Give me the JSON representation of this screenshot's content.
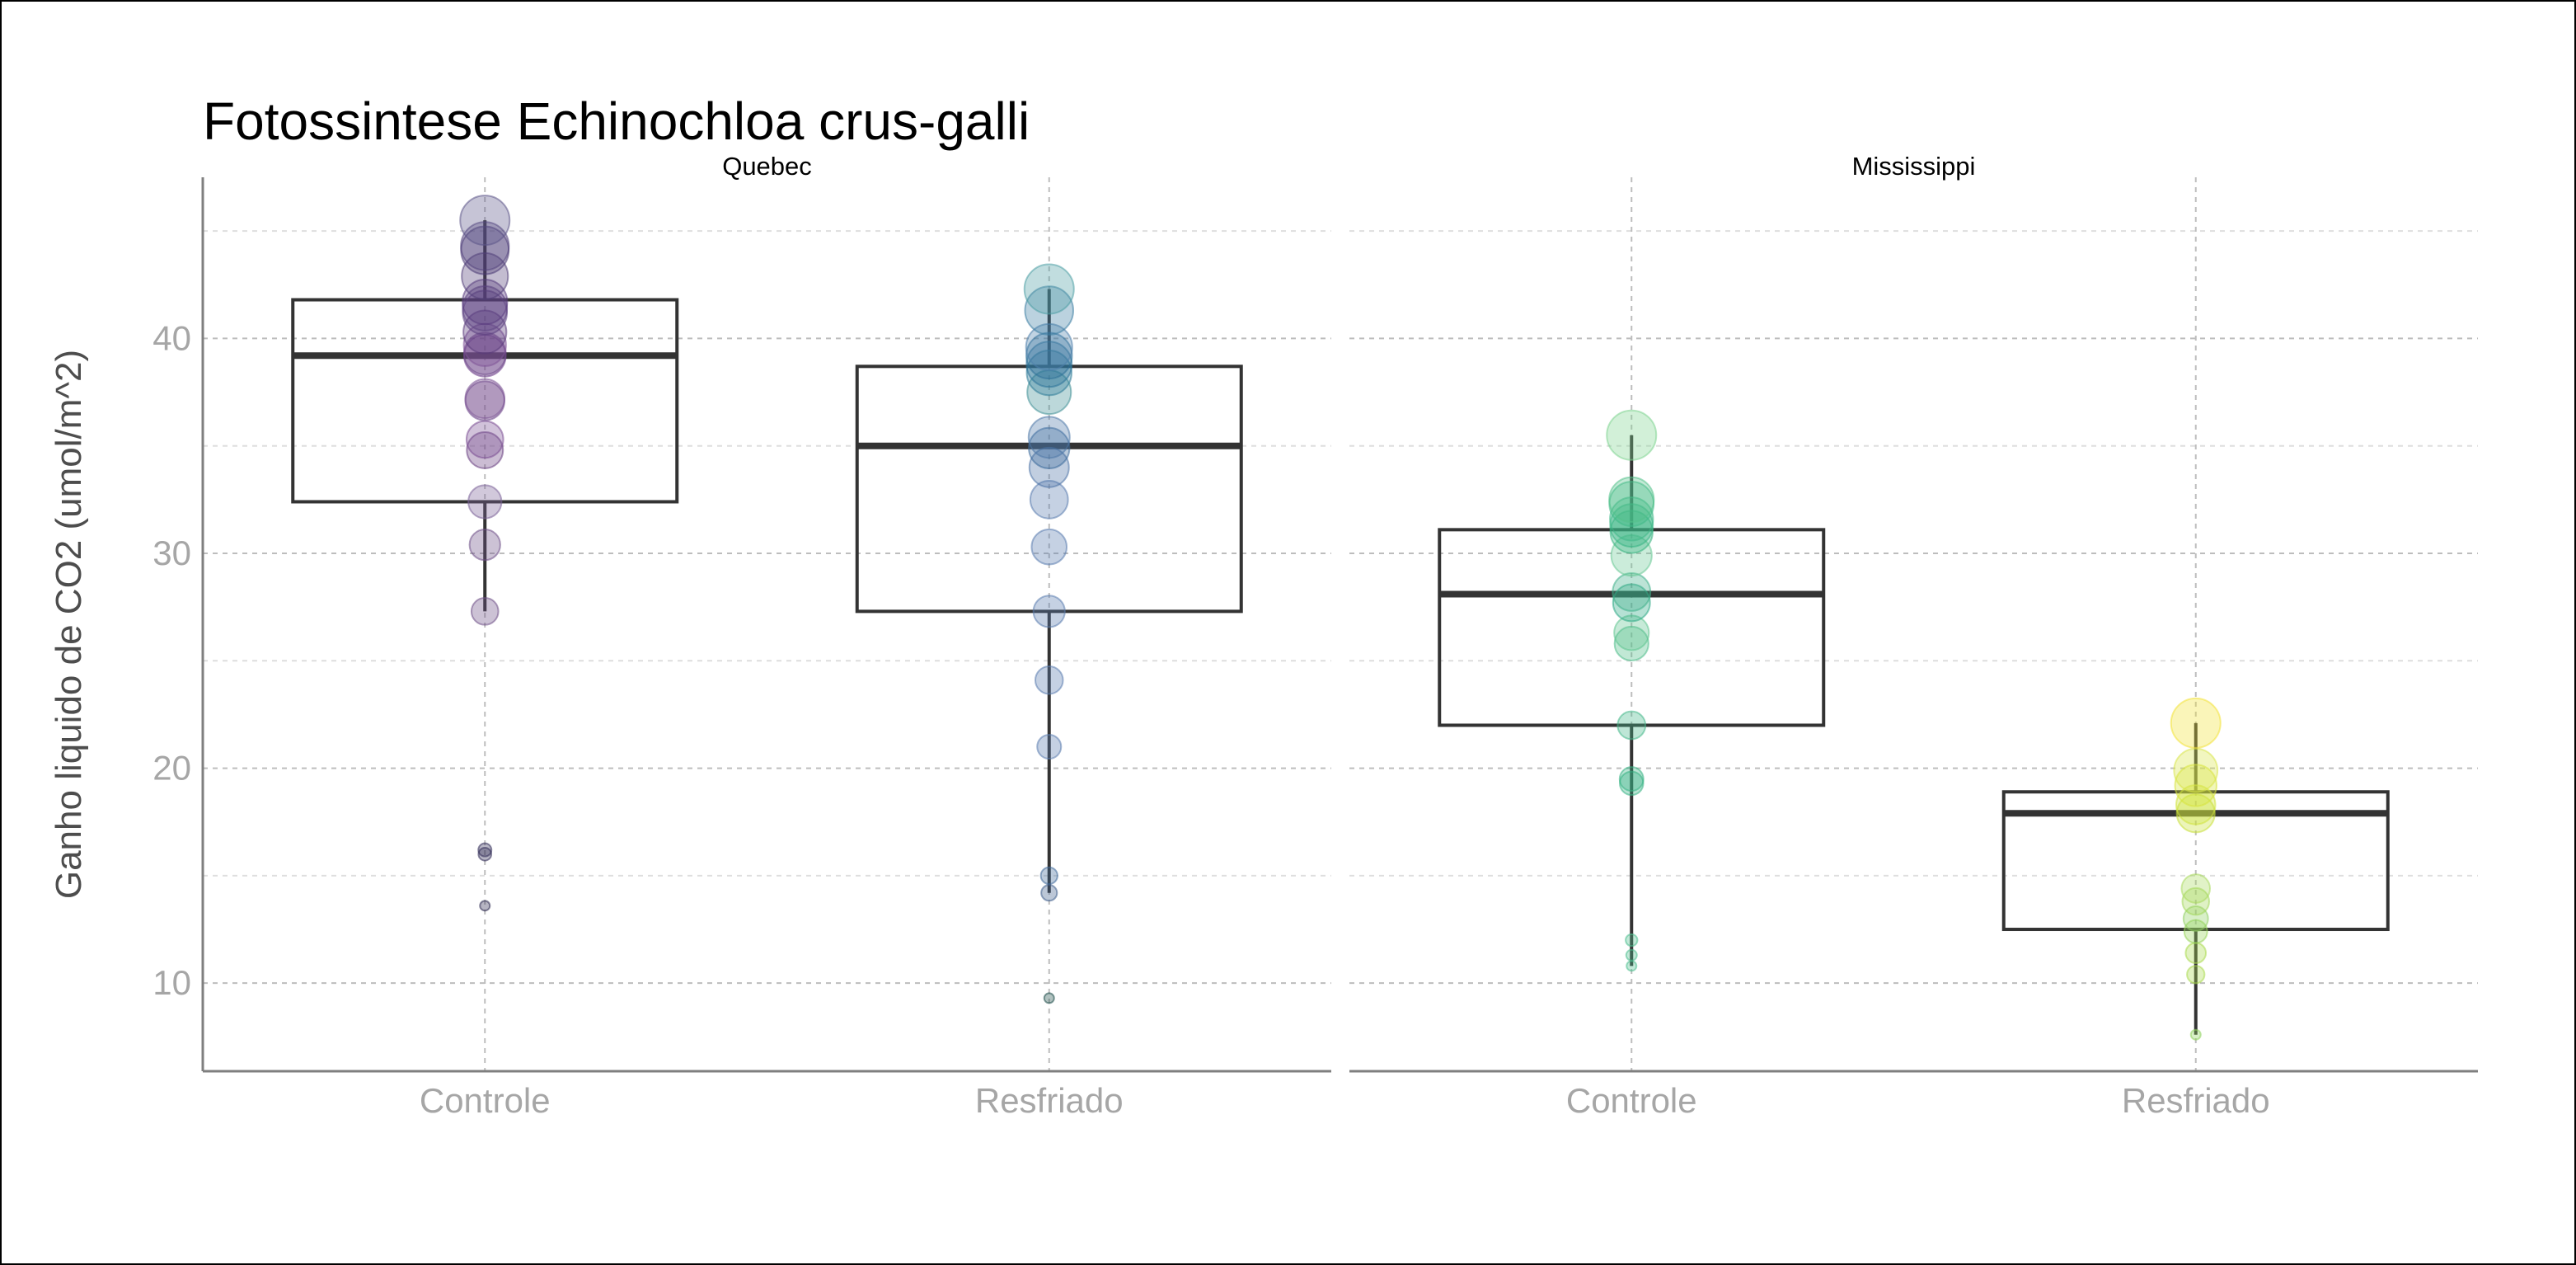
{
  "chart_data": {
    "type": "box",
    "title": "Fotossintese Echinochloa crus-galli",
    "xlabel": "",
    "ylabel": "Ganho liquido de CO2 (umol/m^2)",
    "ylim": [
      5.9,
      47.5
    ],
    "yticks": [
      10,
      20,
      30,
      40
    ],
    "grid": true,
    "categories": [
      "Controle",
      "Resfriado"
    ],
    "facets": [
      {
        "name": "Quebec",
        "groups": [
          {
            "category": "Controle",
            "q1": 32.4,
            "median": 39.2,
            "q3": 41.8,
            "whisker_low": 27.3,
            "whisker_high": 45.5,
            "points": [
              13.6,
              16.0,
              16.2,
              27.3,
              30.4,
              32.4,
              34.8,
              35.3,
              37.1,
              37.2,
              39.2,
              39.3,
              39.7,
              40.3,
              41.2,
              41.4,
              41.7,
              42.9,
              44.1,
              44.3,
              45.5
            ],
            "point_colors": [
              "#2e2950",
              "#322b57",
              "#322b57",
              "#6d4f86",
              "#6d4f86",
              "#7a6198",
              "#6a3f82",
              "#7c4f94",
              "#6c4488",
              "#7d5696",
              "#6a3b86",
              "#6f4a8b",
              "#7f5498",
              "#5a3a7a",
              "#5b3f80",
              "#5f4584",
              "#5a3d7f",
              "#524078",
              "#4b3a74",
              "#54447e",
              "#5c5689"
            ]
          },
          {
            "category": "Resfriado",
            "q1": 27.3,
            "median": 35.0,
            "q3": 38.7,
            "whisker_low": 14.2,
            "whisker_high": 42.3,
            "points": [
              9.3,
              14.2,
              15.0,
              21.0,
              24.1,
              27.3,
              30.3,
              32.5,
              34.0,
              34.9,
              35.4,
              37.5,
              38.4,
              38.8,
              39.2,
              39.6,
              41.3,
              42.3
            ],
            "point_colors": [
              "#1f4f4a",
              "#3f5f8c",
              "#3f6a9a",
              "#5a7cae",
              "#5a7cae",
              "#5a7cae",
              "#5a7cae",
              "#5a7cae",
              "#4c73a6",
              "#3b6a9a",
              "#4e78a8",
              "#3f8f96",
              "#2e7c98",
              "#2b7399",
              "#2d6f97",
              "#4e80ab",
              "#3d7ea2",
              "#4d9ea4"
            ]
          }
        ]
      },
      {
        "name": "Mississippi",
        "groups": [
          {
            "category": "Controle",
            "q1": 22.0,
            "median": 28.1,
            "q3": 31.1,
            "whisker_low": 10.8,
            "whisker_high": 35.5,
            "points": [
              10.8,
              11.3,
              12.0,
              19.3,
              19.5,
              22.0,
              25.8,
              26.3,
              27.7,
              28.2,
              29.9,
              31.0,
              31.3,
              31.6,
              32.3,
              32.5,
              35.5
            ],
            "point_colors": [
              "#4fbf8f",
              "#4fbf8f",
              "#4fbf8f",
              "#37b384",
              "#37b384",
              "#46b88a",
              "#4cbc88",
              "#5fc48f",
              "#2aa883",
              "#3fb08a",
              "#69c995",
              "#34b27d",
              "#37b584",
              "#40b888",
              "#3fb986",
              "#54c18a",
              "#7ed38f"
            ]
          },
          {
            "category": "Resfriado",
            "q1": 12.5,
            "median": 17.9,
            "q3": 18.9,
            "whisker_low": 7.6,
            "whisker_high": 22.1,
            "points": [
              7.6,
              10.4,
              11.4,
              12.4,
              13.0,
              13.8,
              14.4,
              17.9,
              18.3,
              19.2,
              19.9,
              22.1
            ],
            "point_colors": [
              "#8fd35f",
              "#a9da4c",
              "#a9da4c",
              "#97d55a",
              "#8fd062",
              "#a3d75a",
              "#a9da5f",
              "#c9e03a",
              "#cfe33a",
              "#d7e43b",
              "#d9e64a",
              "#f2e236"
            ]
          }
        ]
      }
    ]
  }
}
